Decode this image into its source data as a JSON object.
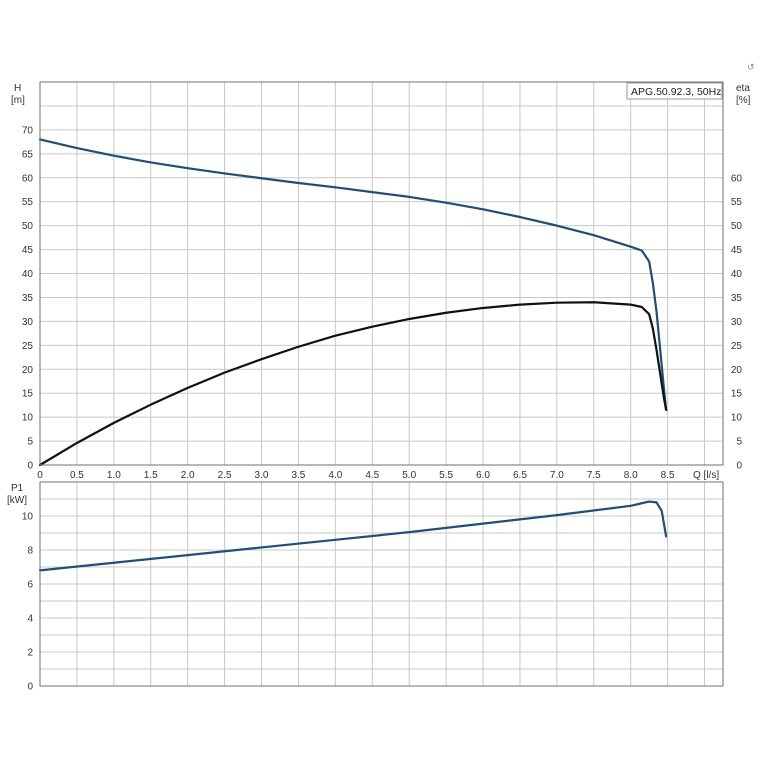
{
  "colors": {
    "head_curve": "#1f4e79",
    "eta_curve": "#111111",
    "power_curve": "#1f4e79",
    "grid": "#c8c8c8",
    "frame": "#6f6f6f"
  },
  "corner_mark": "↺",
  "legend": {
    "text": "APG.50.92.3, 50Hz",
    "placement": "top-right"
  },
  "chart_data": [
    {
      "type": "line",
      "panel": "head-efficiency",
      "title": "",
      "ylabel_left": {
        "line1": "H",
        "line2": "[m]"
      },
      "ylabel_right": {
        "line1": "eta",
        "line2": "[%]"
      },
      "xlabel": "Q [l/s]",
      "xlim": [
        0,
        9.25
      ],
      "ylim": [
        0,
        80
      ],
      "grid": true,
      "x_ticks": [
        {
          "value": 0,
          "label": "0"
        },
        {
          "value": 0.5,
          "label": "0.5"
        },
        {
          "value": 1,
          "label": "1.0"
        },
        {
          "value": 1.5,
          "label": "1.5"
        },
        {
          "value": 2,
          "label": "2.0"
        },
        {
          "value": 2.5,
          "label": "2.5"
        },
        {
          "value": 3,
          "label": "3.0"
        },
        {
          "value": 3.5,
          "label": "3.5"
        },
        {
          "value": 4,
          "label": "4.0"
        },
        {
          "value": 4.5,
          "label": "4.5"
        },
        {
          "value": 5,
          "label": "5.0"
        },
        {
          "value": 5.5,
          "label": "5.5"
        },
        {
          "value": 6,
          "label": "6.0"
        },
        {
          "value": 6.5,
          "label": "6.5"
        },
        {
          "value": 7,
          "label": "7.0"
        },
        {
          "value": 7.5,
          "label": "7.5"
        },
        {
          "value": 8,
          "label": "8.0"
        },
        {
          "value": 8.5,
          "label": "8.5"
        }
      ],
      "y_ticks_left": [
        0,
        5,
        10,
        15,
        20,
        25,
        30,
        35,
        40,
        45,
        50,
        55,
        60,
        65,
        70
      ],
      "y_ticks_right": [
        0,
        5,
        10,
        15,
        20,
        25,
        30,
        35,
        40,
        45,
        50,
        55,
        60
      ],
      "series": [
        {
          "key": "head",
          "axis": "left",
          "points": [
            [
              0,
              68
            ],
            [
              0.5,
              66.2
            ],
            [
              1,
              64.6
            ],
            [
              1.5,
              63.2
            ],
            [
              2,
              62.0
            ],
            [
              2.5,
              60.9
            ],
            [
              3,
              59.9
            ],
            [
              3.5,
              58.9
            ],
            [
              4,
              58.0
            ],
            [
              4.5,
              57.0
            ],
            [
              5,
              56.0
            ],
            [
              5.5,
              54.8
            ],
            [
              6,
              53.4
            ],
            [
              6.5,
              51.8
            ],
            [
              7,
              50.0
            ],
            [
              7.5,
              48.0
            ],
            [
              8,
              45.6
            ],
            [
              8.15,
              44.8
            ],
            [
              8.25,
              42.5
            ],
            [
              8.3,
              38
            ],
            [
              8.35,
              32
            ],
            [
              8.4,
              24
            ],
            [
              8.45,
              16
            ],
            [
              8.48,
              11.5
            ]
          ]
        },
        {
          "key": "eta",
          "axis": "right",
          "points": [
            [
              0,
              0
            ],
            [
              0.5,
              4.6
            ],
            [
              1,
              8.8
            ],
            [
              1.5,
              12.6
            ],
            [
              2,
              16.1
            ],
            [
              2.5,
              19.3
            ],
            [
              3,
              22.1
            ],
            [
              3.5,
              24.7
            ],
            [
              4,
              27.0
            ],
            [
              4.5,
              28.9
            ],
            [
              5,
              30.5
            ],
            [
              5.5,
              31.8
            ],
            [
              6,
              32.8
            ],
            [
              6.5,
              33.5
            ],
            [
              7,
              33.9
            ],
            [
              7.5,
              34.0
            ],
            [
              8,
              33.5
            ],
            [
              8.15,
              33.0
            ],
            [
              8.25,
              31.5
            ],
            [
              8.3,
              28.5
            ],
            [
              8.35,
              24
            ],
            [
              8.4,
              19
            ],
            [
              8.45,
              14
            ],
            [
              8.48,
              11.5
            ]
          ]
        }
      ]
    },
    {
      "type": "line",
      "panel": "power",
      "title": "",
      "ylabel_left": {
        "line1": "P1",
        "line2": "[kW]"
      },
      "xlabel": "",
      "xlim": [
        0,
        9.25
      ],
      "ylim": [
        0,
        12
      ],
      "grid": true,
      "y_ticks_left": [
        0,
        2,
        4,
        6,
        8,
        10
      ],
      "series": [
        {
          "key": "p1",
          "axis": "left",
          "points": [
            [
              0,
              6.8
            ],
            [
              1,
              7.25
            ],
            [
              2,
              7.7
            ],
            [
              3,
              8.15
            ],
            [
              4,
              8.6
            ],
            [
              5,
              9.05
            ],
            [
              6,
              9.55
            ],
            [
              7,
              10.05
            ],
            [
              8,
              10.6
            ],
            [
              8.25,
              10.85
            ],
            [
              8.35,
              10.8
            ],
            [
              8.42,
              10.3
            ],
            [
              8.48,
              8.8
            ]
          ]
        }
      ]
    }
  ]
}
